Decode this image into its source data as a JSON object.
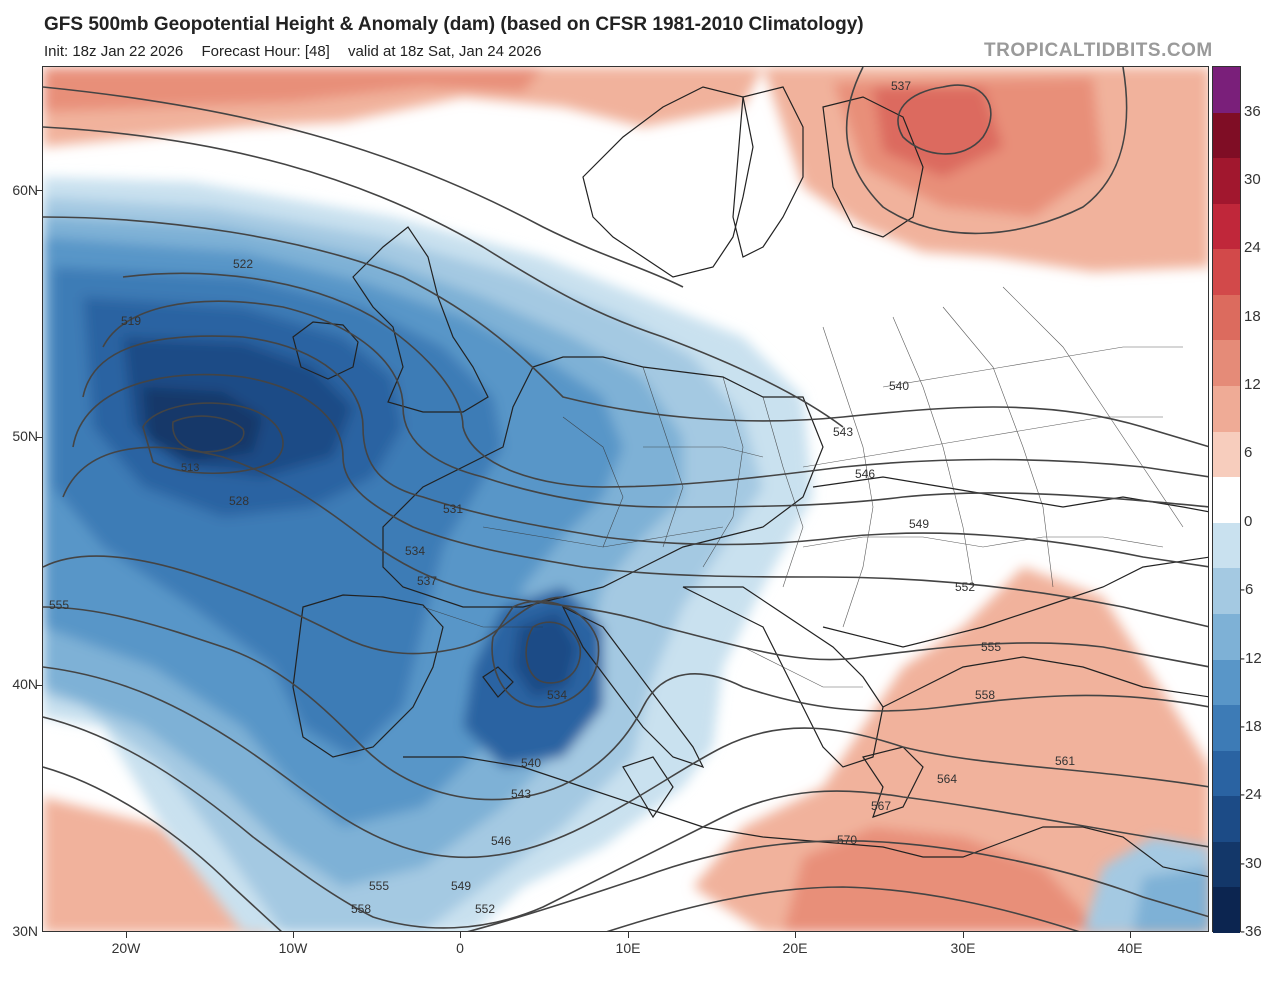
{
  "header": {
    "title": "GFS 500mb Geopotential Height & Anomaly (dam) (based on CFSR 1981-2010 Climatology)",
    "init": "Init: 18z Jan 22 2026",
    "forecast_hour": "Forecast Hour: [48]",
    "valid": "valid at 18z Sat, Jan 24 2026",
    "brand": "TROPICALTIDBITS.COM"
  },
  "map": {
    "lat_labels": [
      "60N",
      "50N",
      "40N",
      "30N"
    ],
    "lon_labels": [
      "20W",
      "10W",
      "0",
      "10E",
      "20E",
      "30E",
      "40E"
    ],
    "contour_labels": [
      "537",
      "522",
      "519",
      "528",
      "531",
      "534",
      "537",
      "555",
      "534",
      "540",
      "543",
      "546",
      "549",
      "552",
      "555",
      "558",
      "540",
      "543",
      "546",
      "549",
      "552",
      "555",
      "558",
      "561",
      "564",
      "567",
      "570"
    ],
    "low_center_label": "513"
  },
  "colorbar": {
    "labels": [
      "36",
      "30",
      "24",
      "18",
      "12",
      "6",
      "0",
      "-6",
      "-12",
      "-18",
      "-24",
      "-30",
      "-36"
    ],
    "colors": [
      "#7a1f7a",
      "#7f0d25",
      "#a1172e",
      "#c0273a",
      "#d2494a",
      "#dc6b5e",
      "#e58b78",
      "#efab96",
      "#f7cdbd",
      "#ffffff",
      "#c9e1ef",
      "#a4c9e2",
      "#7eb1d6",
      "#5996c8",
      "#3d7bb6",
      "#2a63a2",
      "#1c4b86",
      "#133769",
      "#0c2550"
    ]
  }
}
